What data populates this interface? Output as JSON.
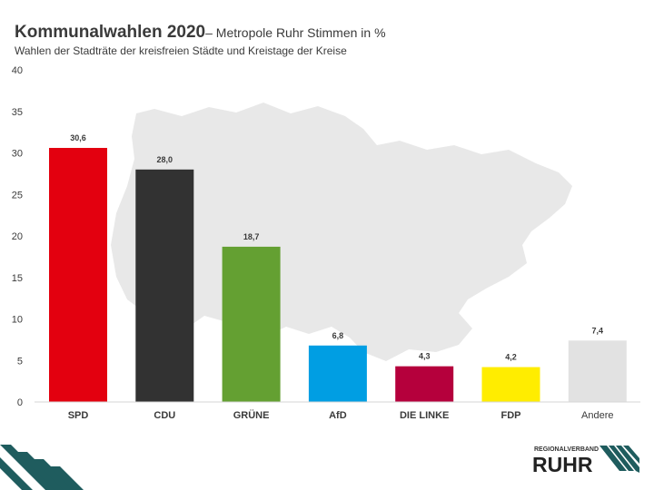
{
  "header": {
    "title": "Kommunalwahlen 2020",
    "title_suffix": "– Metropole Ruhr Stimmen in %",
    "subtitle": "Wahlen der Stadträte der kreisfreien Städte und Kreistage der Kreise"
  },
  "chart_data": {
    "type": "bar",
    "categories": [
      "SPD",
      "CDU",
      "GRÜNE",
      "AfD",
      "DIE LINKE",
      "FDP",
      "Andere"
    ],
    "values": [
      30.6,
      28.0,
      18.7,
      6.8,
      4.3,
      4.2,
      7.4
    ],
    "value_labels": [
      "30,6",
      "28,0",
      "18,7",
      "6,8",
      "4,3",
      "4,2",
      "7,4"
    ],
    "colors": [
      "#e3000f",
      "#323232",
      "#64a032",
      "#009ee3",
      "#b5003c",
      "#ffed00",
      "#e2e2e2"
    ],
    "ylim": [
      0,
      40
    ],
    "yticks": [
      0,
      5,
      10,
      15,
      20,
      25,
      30,
      35,
      40
    ],
    "grid": false,
    "legend": "none"
  },
  "logo": {
    "top_text": "REGIONALVERBAND",
    "main_text": "RUHR"
  },
  "colors": {
    "background_map": "#e8e8e8",
    "stripes": "#1f5c5e",
    "text": "#3a3a3a"
  }
}
